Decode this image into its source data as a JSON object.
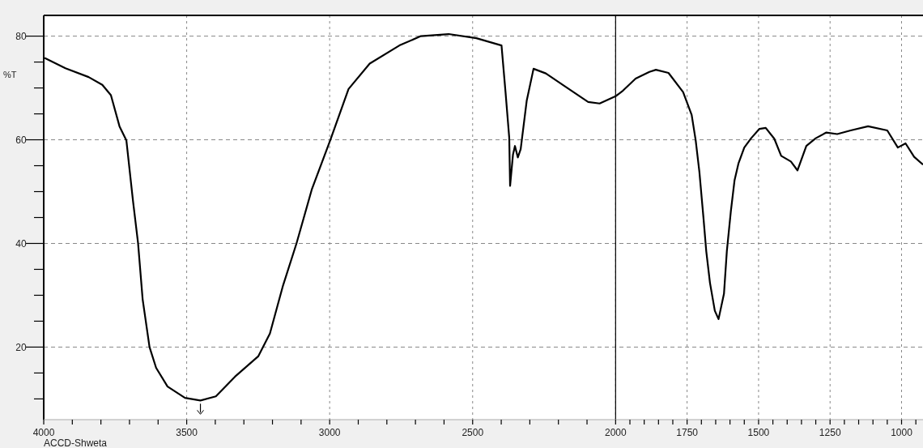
{
  "chart_data": {
    "type": "line",
    "ylabel": "%T",
    "annotations": [
      "ACCD-Shweta"
    ],
    "xlim": [
      4000,
      925
    ],
    "ylim": [
      6,
      84
    ],
    "xticks": [
      4000,
      {
        "value": 3900,
        "label": null
      },
      {
        "value": 3800,
        "label": null
      },
      {
        "value": 3700,
        "label": null
      },
      {
        "value": 3600,
        "label": null
      },
      3500,
      {
        "value": 3400,
        "label": null
      },
      {
        "value": 3300,
        "label": null
      },
      {
        "value": 3200,
        "label": null
      },
      {
        "value": 3100,
        "label": null
      },
      3000,
      {
        "value": 2900,
        "label": null
      },
      {
        "value": 2800,
        "label": null
      },
      {
        "value": 2700,
        "label": null
      },
      {
        "value": 2600,
        "label": null
      },
      2500,
      {
        "value": 2400,
        "label": null
      },
      {
        "value": 2300,
        "label": null
      },
      {
        "value": 2200,
        "label": null
      },
      {
        "value": 2100,
        "label": null
      },
      2000,
      {
        "value": 1950,
        "label": null
      },
      {
        "value": 1900,
        "label": null
      },
      {
        "value": 1850,
        "label": null
      },
      {
        "value": 1800,
        "label": null
      },
      1750,
      {
        "value": 1700,
        "label": null
      },
      {
        "value": 1650,
        "label": null
      },
      {
        "value": 1600,
        "label": null
      },
      {
        "value": 1550,
        "label": null
      },
      1500,
      {
        "value": 1450,
        "label": null
      },
      {
        "value": 1400,
        "label": null
      },
      {
        "value": 1350,
        "label": null
      },
      {
        "value": 1300,
        "label": null
      },
      1250,
      {
        "value": 1200,
        "label": null
      },
      {
        "value": 1150,
        "label": null
      },
      {
        "value": 1100,
        "label": null
      },
      {
        "value": 1050,
        "label": null
      },
      1000,
      {
        "value": 950,
        "label": null
      }
    ],
    "yticks": [
      {
        "value": 10,
        "label": null
      },
      {
        "value": 15,
        "label": null
      },
      20,
      {
        "value": 25,
        "label": null
      },
      {
        "value": 30,
        "label": null
      },
      {
        "value": 35,
        "label": null
      },
      40,
      {
        "value": 45,
        "label": null
      },
      {
        "value": 50,
        "label": null
      },
      {
        "value": 55,
        "label": null
      },
      60,
      {
        "value": 65,
        "label": null
      },
      {
        "value": 70,
        "label": null
      },
      {
        "value": 75,
        "label": null
      },
      80
    ],
    "grid": true,
    "line_style": "solid",
    "marker": "none",
    "ref_lines": [
      {
        "axis": "x",
        "value": 2000,
        "color": "#000000",
        "line_style": "solid"
      }
    ],
    "series": [
      {
        "color": "#000000",
        "x": [
          3997,
          3924,
          3843,
          3795,
          3765,
          3735,
          3711,
          3688,
          3670,
          3654,
          3630,
          3607,
          3567,
          3506,
          3452,
          3398,
          3331,
          3250,
          3209,
          3163,
          3116,
          3062,
          2998,
          2934,
          2860,
          2756,
          2681,
          2584,
          2487,
          2399,
          2385,
          2372,
          2369,
          2359,
          2352,
          2342,
          2332,
          2311,
          2287,
          2244,
          2177,
          2096,
          2056,
          2000,
          1974,
          1930,
          1882,
          1859,
          1815,
          1764,
          1734,
          1720,
          1707,
          1693,
          1683,
          1670,
          1653,
          1640,
          1621,
          1611,
          1597,
          1584,
          1570,
          1550,
          1526,
          1497,
          1475,
          1445,
          1421,
          1387,
          1364,
          1333,
          1300,
          1263,
          1225,
          1178,
          1117,
          1050,
          1013,
          986,
          956,
          925
        ],
        "values": [
          75.8,
          73.8,
          72.1,
          70.6,
          68.6,
          62.6,
          59.9,
          48.3,
          40,
          29.2,
          20,
          16,
          12.4,
          10.2,
          9.7,
          10.5,
          14.3,
          18.2,
          22.6,
          31.9,
          40,
          50.5,
          59.9,
          69.8,
          74.7,
          78.2,
          80,
          80.4,
          79.6,
          78.2,
          69.2,
          60.4,
          51.1,
          57.1,
          58.8,
          56.6,
          58.2,
          67.5,
          73.7,
          72.8,
          70.3,
          67.3,
          67,
          68.4,
          69.5,
          71.8,
          73.1,
          73.5,
          72.9,
          69.2,
          64.8,
          59.9,
          53.8,
          45.1,
          38.5,
          32.4,
          27,
          25.4,
          30.3,
          38.5,
          46.2,
          52.2,
          55.5,
          58.5,
          60.3,
          62.1,
          62.3,
          60.2,
          56.9,
          55.8,
          54.1,
          58.8,
          60.3,
          61.4,
          61.1,
          61.8,
          62.6,
          61.8,
          58.5,
          59.3,
          56.7,
          55.2
        ]
      }
    ]
  }
}
